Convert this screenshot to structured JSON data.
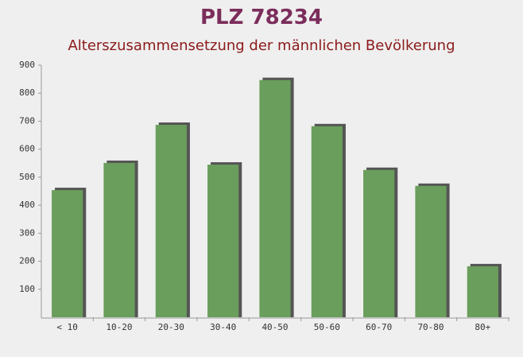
{
  "chart_data": {
    "type": "bar",
    "title": "PLZ 78234",
    "subtitle": "Alterszusammensetzung der männlichen Bevölkerung",
    "categories": [
      "< 10",
      "10-20",
      "20-30",
      "30-40",
      "40-50",
      "50-60",
      "60-70",
      "70-80",
      "80+"
    ],
    "values": [
      454,
      551,
      687,
      545,
      847,
      682,
      526,
      469,
      182
    ],
    "color": "#6a9e5c",
    "ylim": [
      0,
      900
    ],
    "yticks": [
      100,
      200,
      300,
      400,
      500,
      600,
      700,
      800,
      900
    ]
  }
}
